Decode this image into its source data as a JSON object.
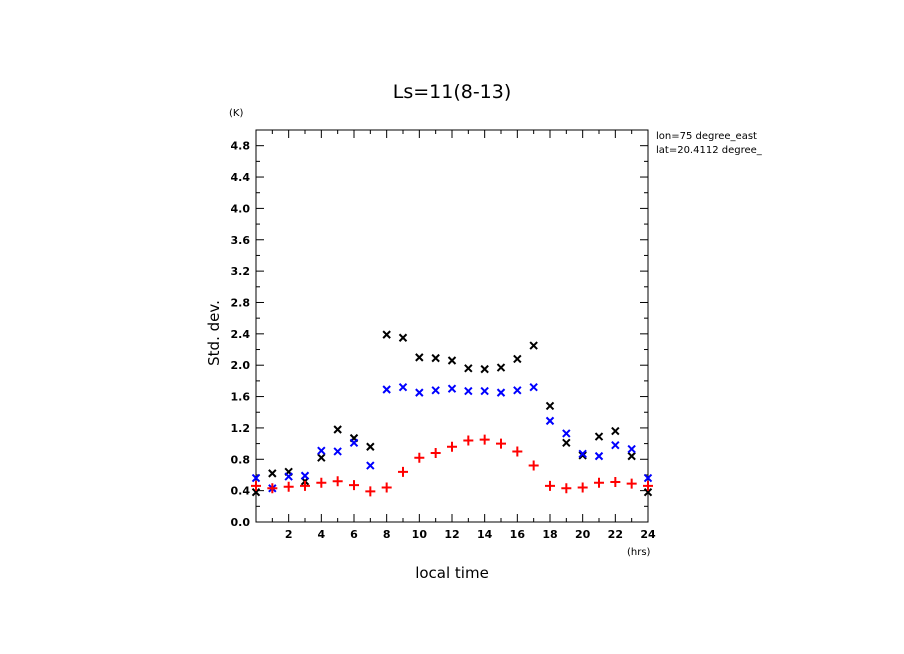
{
  "chart_data": {
    "type": "scatter",
    "title": "Ls=11(8-13)",
    "xlabel": "local time",
    "ylabel": "Std. dev.",
    "y_unit": "(K)",
    "x_unit": "(hrs)",
    "annotation_lines": [
      "lon=75 degree_east",
      "lat=20.4112 degree_"
    ],
    "xlim": [
      0,
      24
    ],
    "ylim": [
      0,
      5
    ],
    "x_ticks": [
      2,
      4,
      6,
      8,
      10,
      12,
      14,
      16,
      18,
      20,
      22,
      24
    ],
    "y_ticks": [
      0.0,
      0.4,
      0.8,
      1.2,
      1.6,
      2.0,
      2.4,
      2.8,
      3.2,
      3.6,
      4.0,
      4.4,
      4.8
    ],
    "grid": false,
    "x": [
      0,
      1,
      2,
      3,
      4,
      5,
      6,
      7,
      8,
      9,
      10,
      11,
      12,
      13,
      14,
      15,
      16,
      17,
      18,
      19,
      20,
      21,
      22,
      23,
      24
    ],
    "series": [
      {
        "marker": "x",
        "color": "#000000",
        "values": [
          0.38,
          0.62,
          0.64,
          0.52,
          0.82,
          1.18,
          1.07,
          0.96,
          2.39,
          2.35,
          2.1,
          2.09,
          2.06,
          1.96,
          1.95,
          1.97,
          2.08,
          2.25,
          1.48,
          1.01,
          0.85,
          1.09,
          1.16,
          0.84,
          0.38
        ]
      },
      {
        "marker": "x",
        "color": "#0000ff",
        "values": [
          0.56,
          0.43,
          0.58,
          0.59,
          0.91,
          0.9,
          1.01,
          0.72,
          1.69,
          1.72,
          1.65,
          1.68,
          1.7,
          1.67,
          1.67,
          1.65,
          1.68,
          1.72,
          1.29,
          1.13,
          0.87,
          0.84,
          0.98,
          0.93,
          0.56
        ]
      },
      {
        "marker": "+",
        "color": "#ff0000",
        "values": [
          0.46,
          0.43,
          0.45,
          0.46,
          0.5,
          0.52,
          0.47,
          0.39,
          0.44,
          0.64,
          0.82,
          0.88,
          0.96,
          1.04,
          1.05,
          1.0,
          0.9,
          0.72,
          0.46,
          0.43,
          0.44,
          0.5,
          0.51,
          0.49,
          0.46
        ]
      }
    ]
  }
}
